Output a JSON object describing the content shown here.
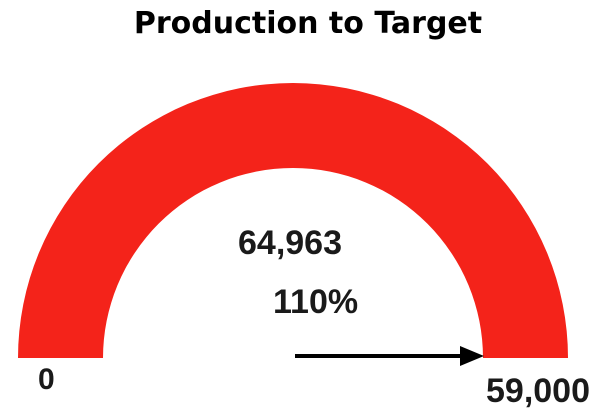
{
  "chart_data": {
    "type": "gauge",
    "title": "Production to Target",
    "value": 64963,
    "value_label": "64,963",
    "percent_label": "110%",
    "min": 0,
    "min_label": "0",
    "target": 59000,
    "target_label": "59,000",
    "percent_of_target": 1.1,
    "fill_color": "#f4231a",
    "arrow_color": "#000000"
  }
}
